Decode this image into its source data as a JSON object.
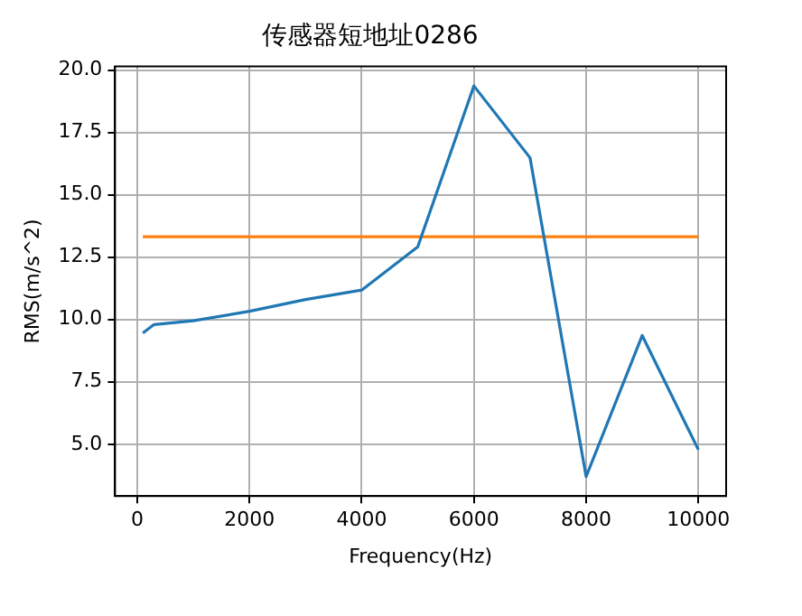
{
  "chart_data": {
    "type": "line",
    "title": "传感器短地址0286",
    "xlabel": "Frequency(Hz)",
    "ylabel": "RMS(m/s^2)",
    "x": [
      100,
      300,
      1000,
      2000,
      3000,
      4000,
      5000,
      6000,
      7000,
      8000,
      9000,
      10000
    ],
    "series": [
      {
        "color": "#1f77b4",
        "values": [
          9.46,
          9.8,
          9.95,
          10.33,
          10.8,
          11.18,
          12.92,
          19.37,
          16.49,
          3.7,
          9.36,
          4.78
        ]
      },
      {
        "color": "#ff7f0e",
        "x": [
          100,
          10000
        ],
        "values": [
          13.32,
          13.32
        ]
      }
    ],
    "xlim": [
      -395,
      10495
    ],
    "ylim": [
      2.92,
      20.15
    ],
    "xticks": [
      0,
      2000,
      4000,
      6000,
      8000,
      10000
    ],
    "yticks": [
      {
        "value": 5,
        "label": "5.0"
      },
      {
        "value": 7.5,
        "label": "7.5"
      },
      {
        "value": 10,
        "label": "10.0"
      },
      {
        "value": 12.5,
        "label": "12.5"
      },
      {
        "value": 15,
        "label": "15.0"
      },
      {
        "value": 17.5,
        "label": "17.5"
      },
      {
        "value": 20,
        "label": "20.0"
      }
    ],
    "grid": true,
    "legend": false,
    "line_style": "solid",
    "marker": "none"
  }
}
